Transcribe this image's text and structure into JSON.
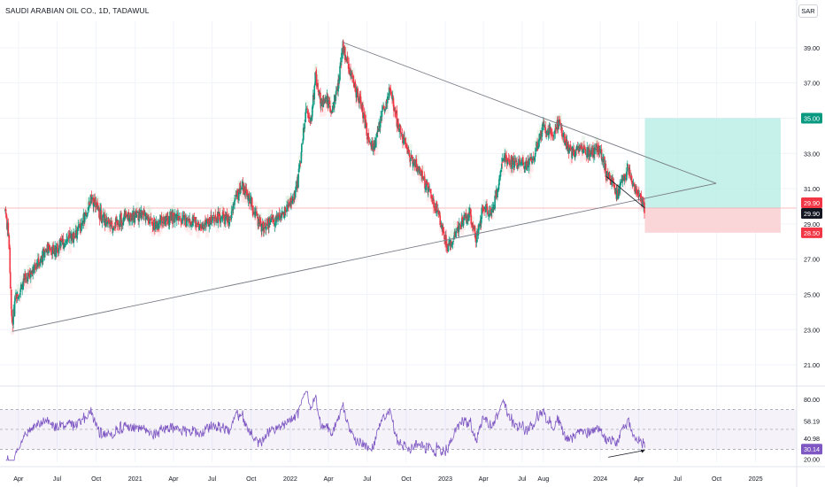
{
  "header": {
    "symbol_title": "SAUDI ARABIAN OIL CO., 1D, TADAWUL",
    "currency_button": "SAR"
  },
  "chart_data": [
    {
      "type": "candlestick",
      "title": "SAUDI ARABIAN OIL CO., 1D, TADAWUL",
      "price_axis": {
        "ticks": [
          "39.00",
          "37.00",
          "35.00",
          "33.00",
          "31.00",
          "29.00",
          "27.00",
          "25.00",
          "23.00",
          "21.00"
        ],
        "range": [
          20.0,
          40.5
        ]
      },
      "time_axis": {
        "labels": [
          "Apr",
          "Jul",
          "Oct",
          "2021",
          "Apr",
          "Jul",
          "Oct",
          "2022",
          "Apr",
          "Jul",
          "Oct",
          "2023",
          "Apr",
          "Jul",
          "Aug",
          "2024",
          "Apr",
          "Jul",
          "Oct",
          "2025"
        ]
      },
      "price_path": [
        [
          "2020-03-01",
          29.8
        ],
        [
          "2020-03-10",
          28.0
        ],
        [
          "2020-03-17",
          23.0
        ],
        [
          "2020-03-25",
          24.8
        ],
        [
          "2020-04-15",
          25.8
        ],
        [
          "2020-05-10",
          26.4
        ],
        [
          "2020-06-05",
          27.6
        ],
        [
          "2020-06-25",
          27.5
        ],
        [
          "2020-07-20",
          28.0
        ],
        [
          "2020-08-15",
          28.4
        ],
        [
          "2020-09-05",
          29.4
        ],
        [
          "2020-09-20",
          30.5
        ],
        [
          "2020-10-10",
          29.6
        ],
        [
          "2020-11-01",
          28.9
        ],
        [
          "2020-11-25",
          29.2
        ],
        [
          "2020-12-20",
          29.4
        ],
        [
          "2021-01-20",
          29.6
        ],
        [
          "2021-02-20",
          28.9
        ],
        [
          "2021-03-25",
          29.4
        ],
        [
          "2021-05-01",
          29.2
        ],
        [
          "2021-06-01",
          29.0
        ],
        [
          "2021-06-25",
          29.1
        ],
        [
          "2021-07-20",
          29.4
        ],
        [
          "2021-08-10",
          29.2
        ],
        [
          "2021-08-25",
          30.4
        ],
        [
          "2021-09-10",
          31.1
        ],
        [
          "2021-09-30",
          30.4
        ],
        [
          "2021-10-10",
          29.6
        ],
        [
          "2021-10-25",
          28.8
        ],
        [
          "2021-11-20",
          29.2
        ],
        [
          "2021-12-10",
          29.4
        ],
        [
          "2021-12-30",
          30.3
        ],
        [
          "2022-01-10",
          30.4
        ],
        [
          "2022-01-20",
          31.5
        ],
        [
          "2022-01-28",
          33.2
        ],
        [
          "2022-02-07",
          35.4
        ],
        [
          "2022-02-20",
          35.0
        ],
        [
          "2022-03-02",
          37.5
        ],
        [
          "2022-03-15",
          35.8
        ],
        [
          "2022-03-28",
          36.0
        ],
        [
          "2022-04-10",
          35.4
        ],
        [
          "2022-04-25",
          37.0
        ],
        [
          "2022-05-05",
          39.2
        ],
        [
          "2022-05-20",
          37.8
        ],
        [
          "2022-06-05",
          36.5
        ],
        [
          "2022-06-20",
          35.6
        ],
        [
          "2022-07-05",
          33.6
        ],
        [
          "2022-07-20",
          33.4
        ],
        [
          "2022-08-05",
          35.2
        ],
        [
          "2022-08-25",
          36.6
        ],
        [
          "2022-09-10",
          34.8
        ],
        [
          "2022-09-25",
          33.8
        ],
        [
          "2022-10-10",
          32.8
        ],
        [
          "2022-10-25",
          32.4
        ],
        [
          "2022-11-10",
          31.6
        ],
        [
          "2022-11-25",
          30.8
        ],
        [
          "2022-12-10",
          29.9
        ],
        [
          "2022-12-25",
          28.8
        ],
        [
          "2023-01-08",
          27.6
        ],
        [
          "2023-01-20",
          28.2
        ],
        [
          "2023-02-10",
          29.2
        ],
        [
          "2023-03-01",
          29.6
        ],
        [
          "2023-03-15",
          28.2
        ],
        [
          "2023-03-30",
          29.7
        ],
        [
          "2023-04-20",
          29.8
        ],
        [
          "2023-04-30",
          30.4
        ],
        [
          "2023-05-15",
          32.3
        ],
        [
          "2023-05-25",
          32.8
        ],
        [
          "2023-06-10",
          32.4
        ],
        [
          "2023-06-30",
          32.6
        ],
        [
          "2023-07-15",
          32.2
        ],
        [
          "2023-08-05",
          33.4
        ],
        [
          "2023-08-20",
          34.5
        ],
        [
          "2023-09-10",
          34.2
        ],
        [
          "2023-09-25",
          34.8
        ],
        [
          "2023-10-10",
          33.7
        ],
        [
          "2023-10-25",
          33.0
        ],
        [
          "2023-11-15",
          33.3
        ],
        [
          "2023-12-05",
          33.0
        ],
        [
          "2023-12-25",
          33.2
        ],
        [
          "2024-01-05",
          32.9
        ],
        [
          "2024-01-15",
          31.8
        ],
        [
          "2024-01-30",
          31.4
        ],
        [
          "2024-02-10",
          30.6
        ],
        [
          "2024-02-25",
          31.6
        ],
        [
          "2024-03-08",
          32.0
        ],
        [
          "2024-03-20",
          31.2
        ],
        [
          "2024-03-30",
          30.8
        ],
        [
          "2024-04-05",
          30.3
        ],
        [
          "2024-04-15",
          29.9
        ]
      ],
      "trendlines": [
        {
          "name": "upper_trendline",
          "points": [
            [
              "2022-05-05",
              39.3
            ],
            [
              "2024-09-30",
              31.3
            ]
          ]
        },
        {
          "name": "lower_trendline",
          "points": [
            [
              "2020-03-17",
              22.9
            ],
            [
              "2024-09-30",
              31.3
            ]
          ]
        }
      ],
      "position_tool": {
        "entry": 29.9,
        "target": 35.0,
        "stop": 28.5,
        "from": "2024-04-15",
        "to": "2025-03-01"
      },
      "price_labels": [
        {
          "value": "35.00",
          "color": "#089981"
        },
        {
          "value": "29.90",
          "color": "#f23645"
        },
        {
          "value": "29.90",
          "color": "#131722"
        },
        {
          "value": "28.50",
          "color": "#f23645"
        }
      ],
      "horizontal_line": 29.9,
      "colors": {
        "up": "#089981",
        "down": "#f23645",
        "target_zone": "#b2ece3",
        "stop_zone": "#fbd2d5",
        "trendline": "#787b86"
      }
    },
    {
      "type": "line",
      "name": "RSI",
      "y_ticks": [
        "80.00",
        "58.19",
        "40.98",
        "30.14",
        "20.00"
      ],
      "levels": {
        "upper": 70,
        "middle": 50,
        "lower": 30
      },
      "last_value": "30.14",
      "range": [
        17,
        90
      ],
      "color": "#7e57c2"
    }
  ]
}
